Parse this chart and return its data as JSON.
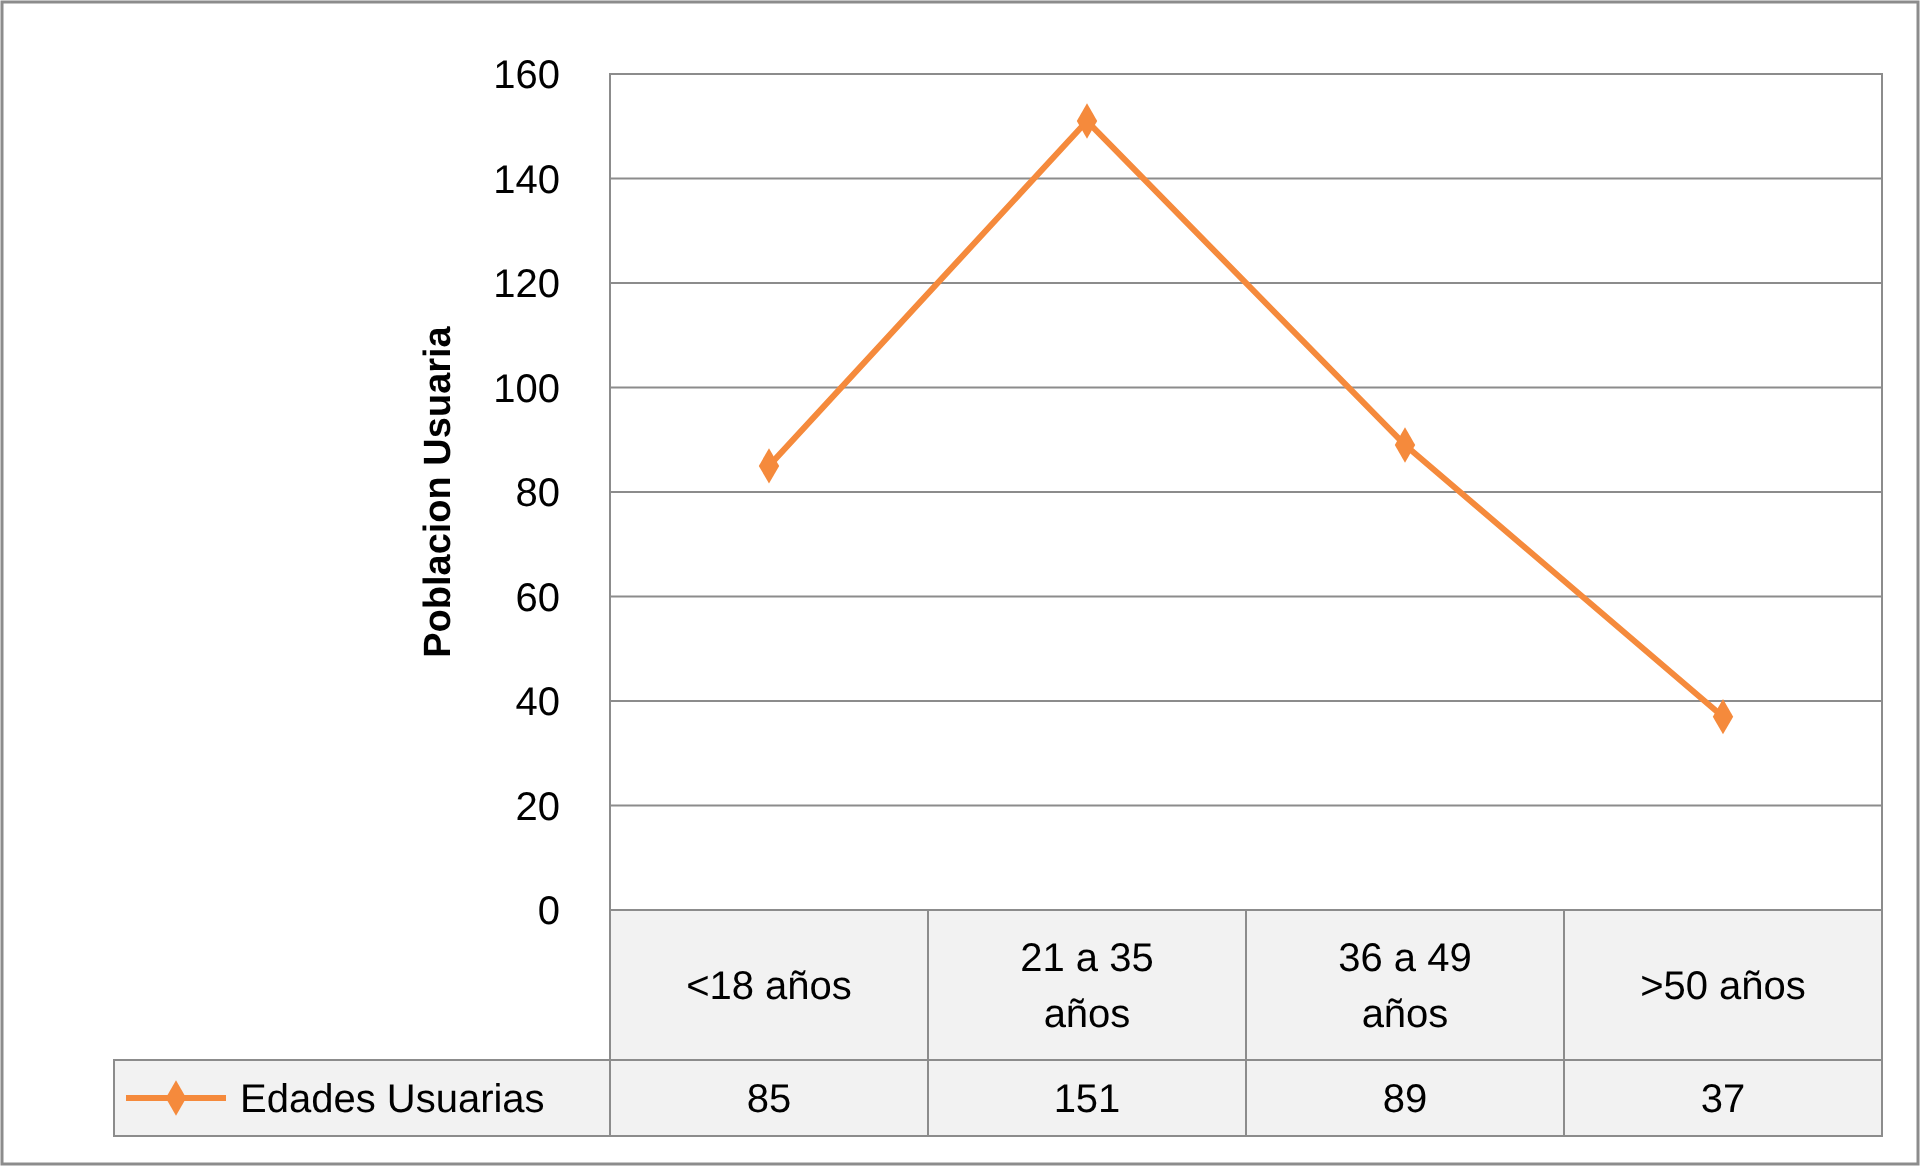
{
  "chart_data": {
    "type": "line",
    "ylabel": "Poblacion Usuaria",
    "categories": [
      "<18 años",
      "21 a 35 años",
      "36 a 49 años",
      ">50 años"
    ],
    "series": [
      {
        "name": "Edades Usuarias",
        "color": "#f58a3c",
        "values": [
          85,
          151,
          89,
          37
        ]
      }
    ],
    "ylim": [
      0,
      160
    ],
    "yticks": [
      0,
      20,
      40,
      60,
      80,
      100,
      120,
      140,
      160
    ],
    "grid": "y",
    "legend": "bottom",
    "marker": "diamond",
    "line_style": "solid",
    "data_labels": true
  }
}
